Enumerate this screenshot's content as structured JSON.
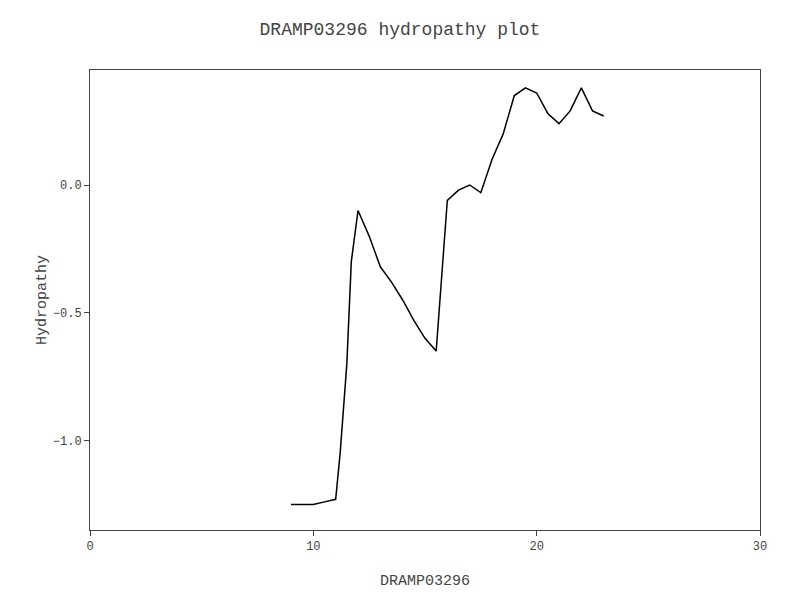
{
  "chart_data": {
    "type": "line",
    "title": "DRAMP03296 hydropathy plot",
    "xlabel": "DRAMP03296",
    "ylabel": "Hydropathy",
    "x": [
      9.0,
      9.5,
      10.0,
      10.5,
      11.0,
      11.2,
      11.5,
      11.7,
      12.0,
      12.5,
      13.0,
      13.5,
      14.0,
      14.5,
      15.0,
      15.5,
      16.0,
      16.5,
      17.0,
      17.5,
      18.0,
      18.5,
      19.0,
      19.5,
      20.0,
      20.5,
      21.0,
      21.5,
      22.0,
      22.5,
      23.0
    ],
    "values": [
      -1.25,
      -1.25,
      -1.25,
      -1.24,
      -1.23,
      -1.05,
      -0.7,
      -0.3,
      -0.1,
      -0.2,
      -0.32,
      -0.38,
      -0.45,
      -0.53,
      -0.6,
      -0.65,
      -0.06,
      -0.02,
      0.0,
      -0.03,
      0.1,
      0.2,
      0.35,
      0.38,
      0.36,
      0.28,
      0.24,
      0.29,
      0.38,
      0.29,
      0.27
    ],
    "color": "#000000",
    "xlim": [
      0,
      30
    ],
    "ylim": [
      -1.35,
      0.45
    ],
    "xticks": [
      0,
      10,
      20,
      30
    ],
    "yticks": [
      {
        "value": -1.0,
        "label": "−1.0"
      },
      {
        "value": -0.5,
        "label": "−0.5"
      },
      {
        "value": 0.0,
        "label": "0.0"
      }
    ],
    "grid": false
  }
}
